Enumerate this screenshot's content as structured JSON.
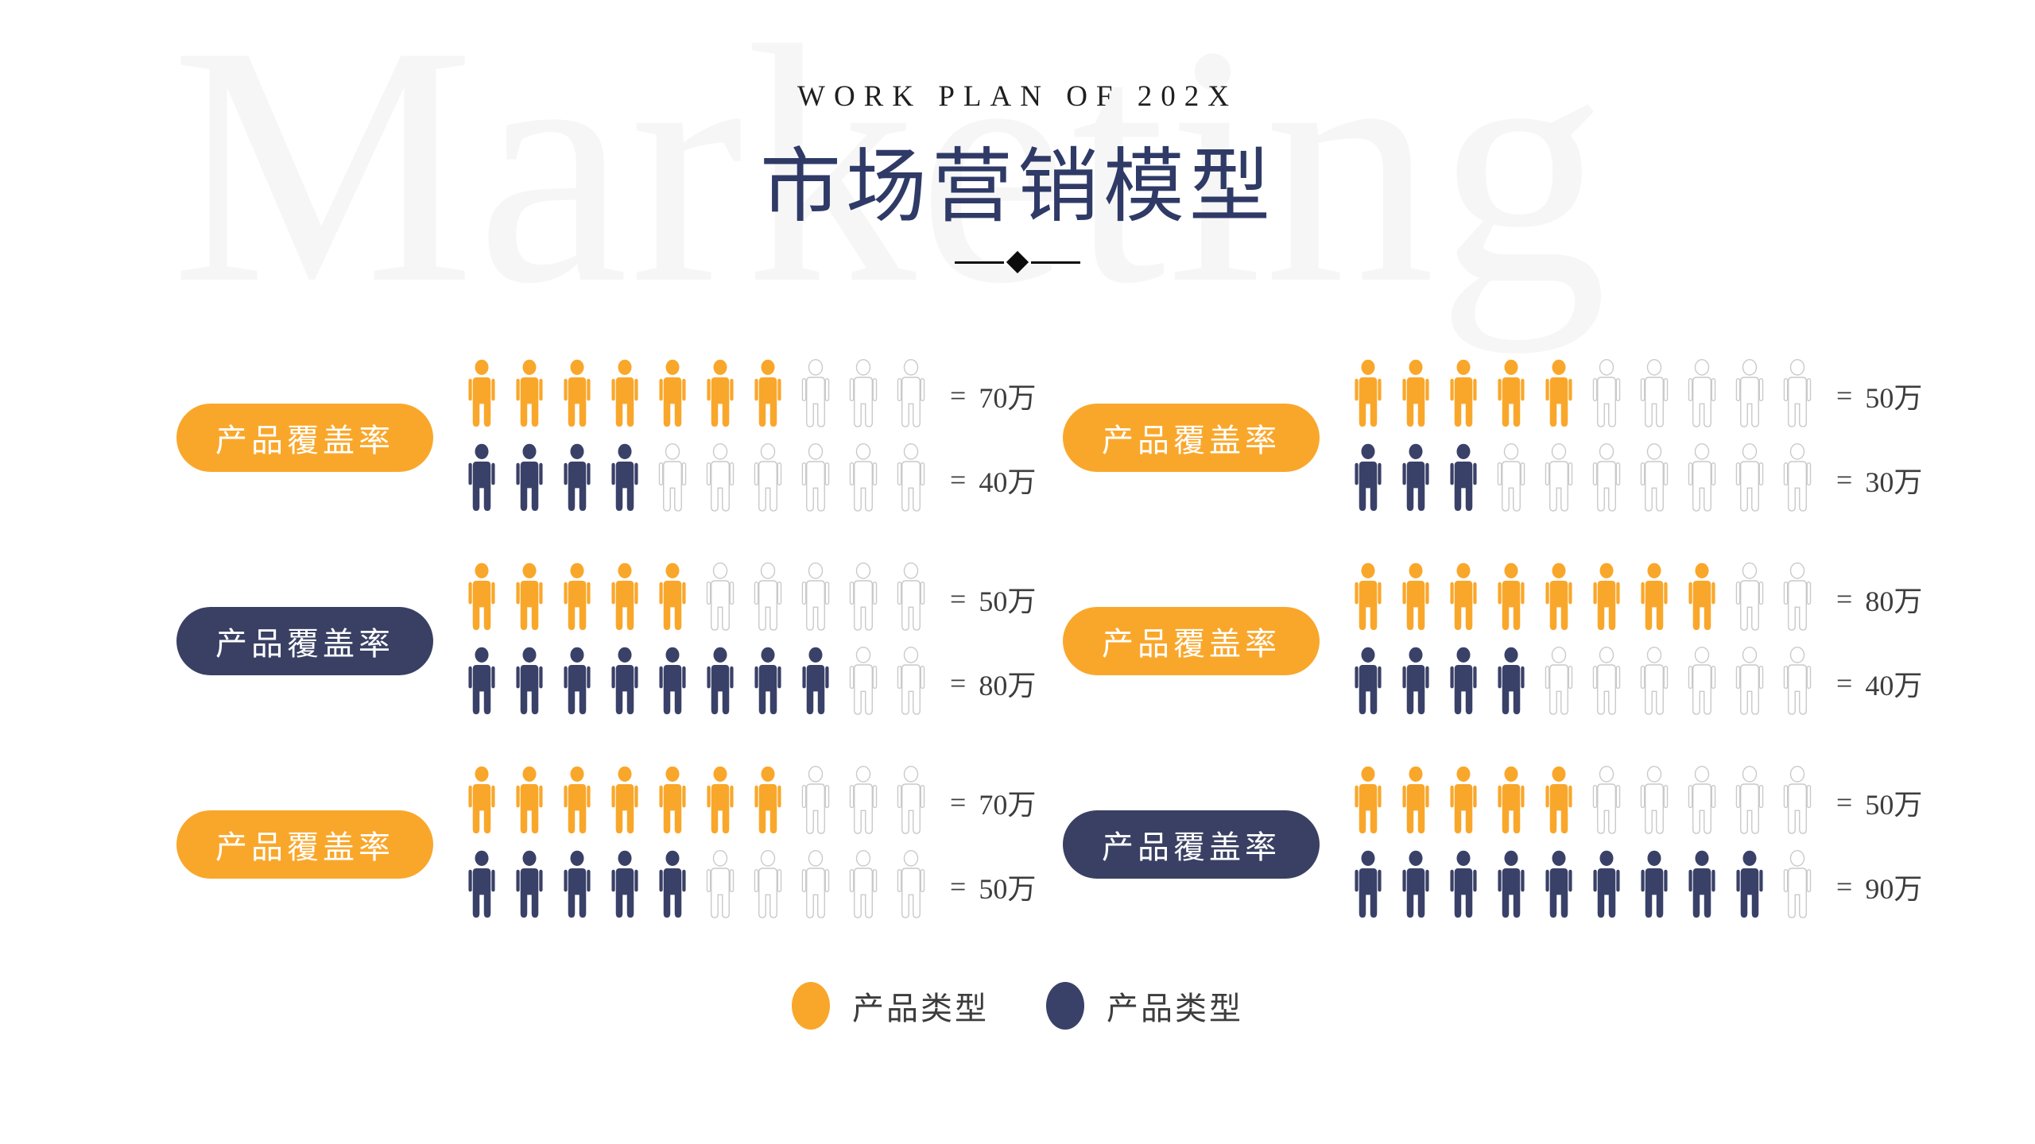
{
  "header": {
    "kicker": "WORK PLAN OF 202X",
    "title": "市场营销模型",
    "watermark": "Marketing"
  },
  "colors": {
    "accent_orange": "#F9A72B",
    "accent_navy": "#3A4168",
    "pill_navy": "#394063",
    "empty_outline": "#C9C9C9",
    "title_navy": "#2F3A66",
    "kicker_dark": "#1F1F1F",
    "value_text": "#3D3D3D",
    "watermark_gray": "#F6F6F6"
  },
  "chart_data": {
    "type": "pictograph",
    "unit": "万",
    "icons_per_row": 10,
    "unit_per_icon": 10,
    "equals_sign": "=",
    "empty_color": "#C9C9C9",
    "legend": [
      {
        "label": "产品类型",
        "color": "#F9A72B"
      },
      {
        "label": "产品类型",
        "color": "#3A4168"
      }
    ],
    "columns": [
      {
        "groups": [
          {
            "label": "产品覆盖率",
            "pill_color": "#F9A72B",
            "series": [
              {
                "name": "产品类型-orange",
                "color": "#F9A72B",
                "filled": 7,
                "total": 10,
                "value": 70,
                "value_label": "70万"
              },
              {
                "name": "产品类型-navy",
                "color": "#3A4168",
                "filled": 4,
                "total": 10,
                "value": 40,
                "value_label": "40万"
              }
            ]
          },
          {
            "label": "产品覆盖率",
            "pill_color": "#394063",
            "series": [
              {
                "name": "产品类型-orange",
                "color": "#F9A72B",
                "filled": 5,
                "total": 10,
                "value": 50,
                "value_label": "50万"
              },
              {
                "name": "产品类型-navy",
                "color": "#3A4168",
                "filled": 8,
                "total": 10,
                "value": 80,
                "value_label": "80万"
              }
            ]
          },
          {
            "label": "产品覆盖率",
            "pill_color": "#F9A72B",
            "series": [
              {
                "name": "产品类型-orange",
                "color": "#F9A72B",
                "filled": 7,
                "total": 10,
                "value": 70,
                "value_label": "70万"
              },
              {
                "name": "产品类型-navy",
                "color": "#3A4168",
                "filled": 5,
                "total": 10,
                "value": 50,
                "value_label": "50万"
              }
            ]
          }
        ]
      },
      {
        "groups": [
          {
            "label": "产品覆盖率",
            "pill_color": "#F9A72B",
            "series": [
              {
                "name": "产品类型-orange",
                "color": "#F9A72B",
                "filled": 5,
                "total": 10,
                "value": 50,
                "value_label": "50万"
              },
              {
                "name": "产品类型-navy",
                "color": "#3A4168",
                "filled": 3,
                "total": 10,
                "value": 30,
                "value_label": "30万"
              }
            ]
          },
          {
            "label": "产品覆盖率",
            "pill_color": "#F9A72B",
            "series": [
              {
                "name": "产品类型-orange",
                "color": "#F9A72B",
                "filled": 8,
                "total": 10,
                "value": 80,
                "value_label": "80万"
              },
              {
                "name": "产品类型-navy",
                "color": "#3A4168",
                "filled": 4,
                "total": 10,
                "value": 40,
                "value_label": "40万"
              }
            ]
          },
          {
            "label": "产品覆盖率",
            "pill_color": "#394063",
            "series": [
              {
                "name": "产品类型-orange",
                "color": "#F9A72B",
                "filled": 5,
                "total": 10,
                "value": 50,
                "value_label": "50万"
              },
              {
                "name": "产品类型-navy",
                "color": "#3A4168",
                "filled": 9,
                "total": 10,
                "value": 90,
                "value_label": "90万"
              }
            ]
          }
        ]
      }
    ]
  }
}
